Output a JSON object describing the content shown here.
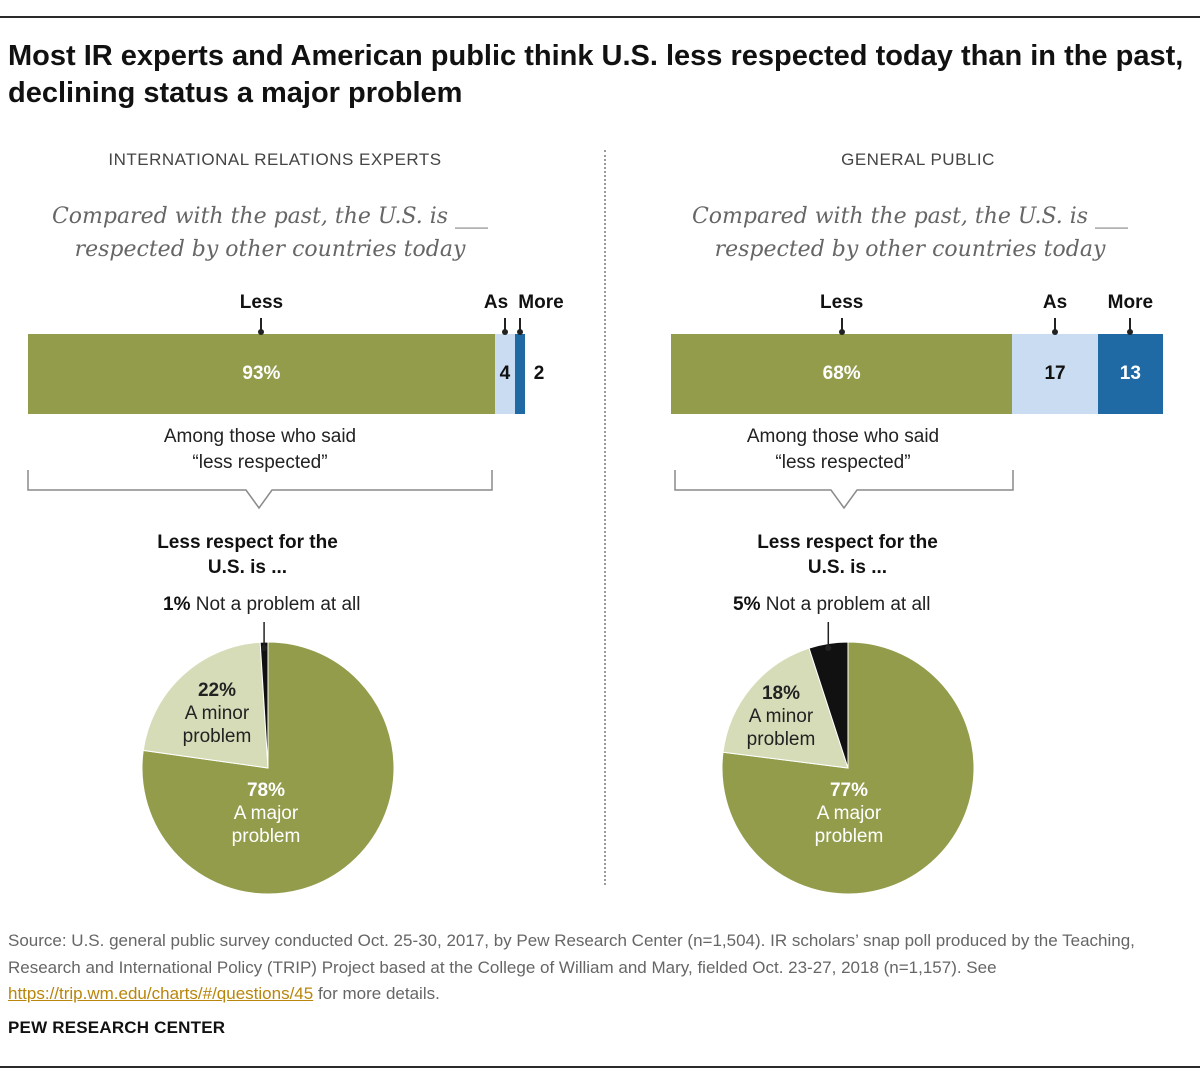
{
  "title": "Most IR experts and American public think U.S. less respected today than in the past, declining status a major problem",
  "colors": {
    "less": "#939c4b",
    "as": "#c9dcf1",
    "more": "#1f6aa5",
    "minor": "#d6dcb8",
    "none": "#111111"
  },
  "chart_data": [
    {
      "type": "bar",
      "panel": "INTERNATIONAL RELATIONS EXPERTS",
      "question_line1": "Compared with the past, the U.S. is ___",
      "question_line2": "respected by other countries today",
      "categories": [
        "Less",
        "As",
        "More"
      ],
      "values": [
        93,
        4,
        2
      ],
      "value_labels": [
        "93%",
        "4",
        "2"
      ]
    },
    {
      "type": "pie",
      "panel": "INTERNATIONAL RELATIONS EXPERTS",
      "note_line1": "Among those who said",
      "note_line2": "“less respected”",
      "title_line1": "Less respect for the",
      "title_line2": "U.S. is ...",
      "slices": [
        {
          "name": "Not a problem at all",
          "value": 1,
          "pct": "1%"
        },
        {
          "name": "A minor problem",
          "line1": "A minor",
          "line2": "problem",
          "value": 22,
          "pct": "22%"
        },
        {
          "name": "A major problem",
          "line1": "A major",
          "line2": "problem",
          "value": 78,
          "pct": "78%"
        }
      ]
    },
    {
      "type": "bar",
      "panel": "GENERAL PUBLIC",
      "question_line1": "Compared with the past, the U.S. is ___",
      "question_line2": "respected by other countries today",
      "categories": [
        "Less",
        "As",
        "More"
      ],
      "values": [
        68,
        17,
        13
      ],
      "value_labels": [
        "68%",
        "17",
        "13"
      ]
    },
    {
      "type": "pie",
      "panel": "GENERAL PUBLIC",
      "note_line1": "Among those who said",
      "note_line2": "“less respected”",
      "title_line1": "Less respect for the",
      "title_line2": "U.S. is ...",
      "slices": [
        {
          "name": "Not a problem at all",
          "value": 5,
          "pct": "5%"
        },
        {
          "name": "A minor problem",
          "line1": "A minor",
          "line2": "problem",
          "value": 18,
          "pct": "18%"
        },
        {
          "name": "A major problem",
          "line1": "A major",
          "line2": "problem",
          "value": 77,
          "pct": "77%"
        }
      ]
    }
  ],
  "source": {
    "text": "Source: U.S. general public survey conducted Oct. 25-30, 2017, by Pew Research Center (n=1,504). IR scholars’ snap poll produced by the Teaching, Research and International Policy (TRIP) Project based at the College of William and Mary, fielded Oct. 23-27, 2018 (n=1,157). See",
    "link": "https://trip.wm.edu/charts/#/questions/45",
    "after": "for more details."
  },
  "brand": "PEW RESEARCH CENTER"
}
